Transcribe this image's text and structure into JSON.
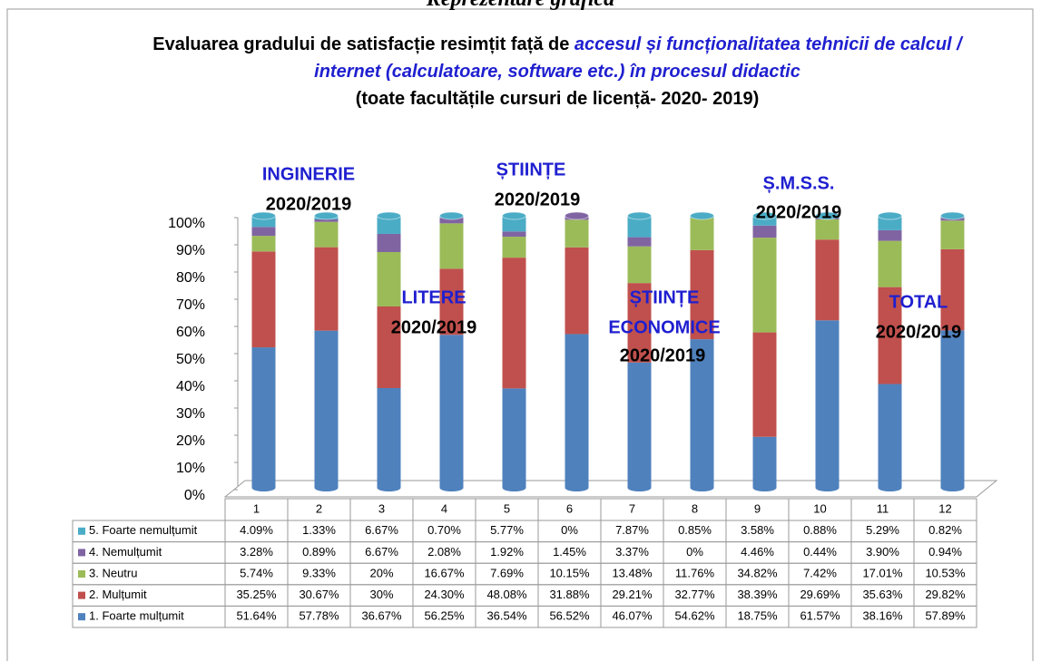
{
  "chart_data": {
    "type": "stacked-cylinder",
    "header": "Reprezentare grafică",
    "title": "Evaluarea gradului de satisfacție resimțit față de",
    "title_emphasis": "accesul și funcționalitatea tehnicii de calcul / internet (calculatoare, software etc.) în procesul didactic",
    "subtitle": "(toate facultățile cursuri de licență- 2020- 2019)",
    "categories": [
      "1",
      "2",
      "3",
      "4",
      "5",
      "6",
      "7",
      "8",
      "9",
      "10",
      "11",
      "12"
    ],
    "series": [
      {
        "name": "1. Foarte mulțumit",
        "color": "#4f81bd",
        "values": [
          51.64,
          57.78,
          36.67,
          56.25,
          36.54,
          56.52,
          46.07,
          54.62,
          18.75,
          61.57,
          38.16,
          57.89
        ],
        "value_labels": [
          "51.64%",
          "57.78%",
          "36.67%",
          "56.25%",
          "36.54%",
          "56.52%",
          "46.07%",
          "54.62%",
          "18.75%",
          "61.57%",
          "38.16%",
          "57.89%"
        ]
      },
      {
        "name": "2. Mulțumit",
        "color": "#c0504d",
        "values": [
          35.25,
          30.67,
          30,
          24.3,
          48.08,
          31.88,
          29.21,
          32.77,
          38.39,
          29.69,
          35.63,
          29.82
        ],
        "value_labels": [
          "35.25%",
          "30.67%",
          "30%",
          "24.30%",
          "48.08%",
          "31.88%",
          "29.21%",
          "32.77%",
          "38.39%",
          "29.69%",
          "35.63%",
          "29.82%"
        ]
      },
      {
        "name": "3. Neutru",
        "color": "#9bbb59",
        "values": [
          5.74,
          9.33,
          20,
          16.67,
          7.69,
          10.15,
          13.48,
          11.76,
          34.82,
          7.42,
          17.01,
          10.53
        ],
        "value_labels": [
          "5.74%",
          "9.33%",
          "20%",
          "16.67%",
          "7.69%",
          "10.15%",
          "13.48%",
          "11.76%",
          "34.82%",
          "7.42%",
          "17.01%",
          "10.53%"
        ]
      },
      {
        "name": "4. Nemulțumit",
        "color": "#8064a2",
        "values": [
          3.28,
          0.89,
          6.67,
          2.08,
          1.92,
          1.45,
          3.37,
          0,
          4.46,
          0.44,
          3.9,
          0.94
        ],
        "value_labels": [
          "3.28%",
          "0.89%",
          "6.67%",
          "2.08%",
          "1.92%",
          "1.45%",
          "3.37%",
          "0%",
          "4.46%",
          "0.44%",
          "3.90%",
          "0.94%"
        ]
      },
      {
        "name": "5. Foarte nemulțumit",
        "color": "#4bacc6",
        "values": [
          4.09,
          1.33,
          6.67,
          0.7,
          5.77,
          0,
          7.87,
          0.85,
          3.58,
          0.88,
          5.29,
          0.82
        ],
        "value_labels": [
          "4.09%",
          "1.33%",
          "6.67%",
          "0.70%",
          "5.77%",
          "0%",
          "7.87%",
          "0.85%",
          "3.58%",
          "0.88%",
          "5.29%",
          "0.82%"
        ]
      }
    ],
    "ylim": [
      0,
      100
    ],
    "yticks": [
      {
        "value": 0,
        "label": "0%"
      },
      {
        "value": 10,
        "label": "10%"
      },
      {
        "value": 20,
        "label": "20%"
      },
      {
        "value": 30,
        "label": "30%"
      },
      {
        "value": 40,
        "label": "40%"
      },
      {
        "value": 50,
        "label": "50%"
      },
      {
        "value": 60,
        "label": "60%"
      },
      {
        "value": 70,
        "label": "70%"
      },
      {
        "value": 80,
        "label": "80%"
      },
      {
        "value": 90,
        "label": "90%"
      },
      {
        "value": 100,
        "label": "100%"
      }
    ],
    "annotations": [
      {
        "text": "INGINERIE",
        "color": "#1f1fd0"
      },
      {
        "text": "2020/2019",
        "color": "#000000"
      },
      {
        "text": "ȘTIINȚE",
        "color": "#1f1fd0"
      },
      {
        "text": "2020/2019",
        "color": "#000000"
      },
      {
        "text": "Ș.M.S.S.",
        "color": "#1f1fd0"
      },
      {
        "text": "2020/2019",
        "color": "#000000"
      },
      {
        "text": "LITERE",
        "color": "#1f1fd0"
      },
      {
        "text": "2020/2019",
        "color": "#000000"
      },
      {
        "text": "ȘTIINȚE",
        "color": "#1f1fd0"
      },
      {
        "text": "ECONOMICE",
        "color": "#1f1fd0"
      },
      {
        "text": "2020/2019",
        "color": "#000000"
      },
      {
        "text": "TOTAL",
        "color": "#1f1fd0"
      },
      {
        "text": "2020/2019",
        "color": "#000000"
      }
    ]
  }
}
